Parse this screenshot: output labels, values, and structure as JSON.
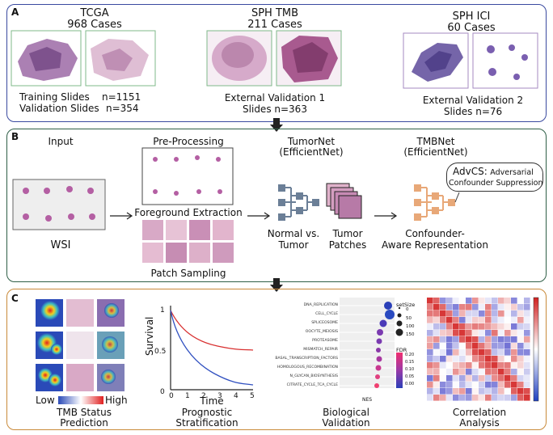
{
  "panelA": {
    "label": "A",
    "tcga": {
      "title": "TCGA",
      "cases": "968 Cases",
      "training": "Training Slides",
      "training_n": "n=1151",
      "validation": "Validation Slides",
      "validation_n": "n=354"
    },
    "sph_tmb": {
      "title": "SPH TMB",
      "cases": "211 Cases",
      "ext": "External Validation 1",
      "slides": "Slides n=363"
    },
    "sph_ici": {
      "title": "SPH ICI",
      "cases": "60 Cases",
      "ext": "External Validation 2",
      "slides": "Slides n=76"
    }
  },
  "panelB": {
    "label": "B",
    "input": "Input",
    "wsi": "WSI",
    "preprocessing": "Pre-Processing",
    "foreground": "Foreground Extraction",
    "patch_sampling": "Patch Sampling",
    "tumornet_1": "TumorNet",
    "tumornet_2": "(EfficientNet)",
    "tmbnet_1": "TMBNet",
    "tmbnet_2": "(EfficientNet)",
    "normal_1": "Normal vs.",
    "normal_2": "Tumor",
    "patches_1": "Tumor",
    "patches_2": "Patches",
    "conf_1": "Confounder-",
    "conf_2": "Aware Representation",
    "advcs_bold": "AdvCS:",
    "advcs_1": "Adversarial",
    "advcs_2": "Confounder Suppression"
  },
  "panelC": {
    "label": "C",
    "low": "Low",
    "high": "High",
    "tmb_1": "TMB Status",
    "tmb_2": "Prediction",
    "survival": "Survival",
    "time": "Time",
    "y_ticks": [
      "1",
      "0.5",
      "0"
    ],
    "x_ticks": [
      "0",
      "1",
      "2",
      "3",
      "4",
      "5"
    ],
    "prog_1": "Prognostic",
    "prog_2": "Stratification",
    "bio_1": "Biological",
    "bio_2": "Validation",
    "corr_1": "Correlation",
    "corr_2": "Analysis",
    "pathways": [
      "DNA_REPLICATION",
      "CELL_CYCLE",
      "SPLICEOSOME",
      "OOCYTE_MEIOSIS",
      "PROTEASOME",
      "MISMATCH_REPAIR",
      "BASAL_TRANSCRIPTION_FACTORS",
      "HOMOLOGOUS_RECOMBINATION",
      "N_GLYCAN_BIOSYNTHESIS",
      "CITRATE_CYCLE_TCA_CYCLE"
    ],
    "nes_label": "NES",
    "setsize_label": "setSize",
    "setsize_values": [
      "0",
      "50",
      "100",
      "150"
    ],
    "fdr_label": "FDR",
    "fdr_values": [
      "0.20",
      "0.15",
      "0.10",
      "0.05",
      "0.00"
    ]
  },
  "colors": {
    "panelA": "#3a4aa0",
    "panelB": "#2f5f47",
    "panelC": "#c98a3a",
    "tumornet": "#6b7f97",
    "tmbnet": "#e8a878"
  }
}
